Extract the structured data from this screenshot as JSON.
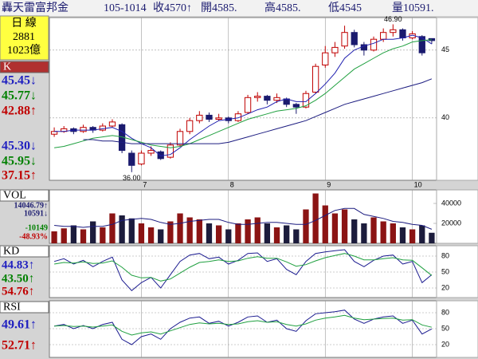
{
  "header": {
    "title": "轟天雷富邦金",
    "date": "105-1014",
    "close": "收4570↑",
    "open": "開4585.",
    "high": "高4585.",
    "low": "低4545",
    "volume": "量10591."
  },
  "sidebar": {
    "period": "日 線",
    "code": "2881",
    "cap": "1023億"
  },
  "chart_data": [
    {
      "type": "candlestick",
      "label": "K",
      "categories": [
        null,
        null,
        null,
        null,
        null,
        null,
        null,
        null,
        null,
        "7",
        null,
        null,
        null,
        null,
        null,
        null,
        null,
        null,
        "8",
        null,
        null,
        null,
        null,
        null,
        null,
        null,
        null,
        null,
        "9",
        null,
        null,
        null,
        null,
        null,
        null,
        null,
        null,
        "10",
        null,
        null
      ],
      "open": [
        38.8,
        39.0,
        39.2,
        39.0,
        39.3,
        39.1,
        39.4,
        39.5,
        37.4,
        36.6,
        37.4,
        37.5,
        37.1,
        38.0,
        39.0,
        39.8,
        40.2,
        39.9,
        40.0,
        39.8,
        40.4,
        41.5,
        41.6,
        41.3,
        41.4,
        41.0,
        40.8,
        41.9,
        43.9,
        44.8,
        45.3,
        46.3,
        45.4,
        45.0,
        45.8,
        46.3,
        46.5,
        45.9,
        46.0,
        45.85
      ],
      "high": [
        39.3,
        39.4,
        39.3,
        39.5,
        39.4,
        39.6,
        39.9,
        39.6,
        37.6,
        37.6,
        37.9,
        37.6,
        38.2,
        39.2,
        40.0,
        40.5,
        40.4,
        40.3,
        40.1,
        40.5,
        41.7,
        41.9,
        41.7,
        41.8,
        41.5,
        41.1,
        42.0,
        44.0,
        45.3,
        45.6,
        46.8,
        46.5,
        45.6,
        46.0,
        46.6,
        46.9,
        46.6,
        46.4,
        46.1,
        45.85
      ],
      "low": [
        38.6,
        38.9,
        38.8,
        38.9,
        38.9,
        39.0,
        39.3,
        37.4,
        36.0,
        36.5,
        37.2,
        36.9,
        37.0,
        37.9,
        38.8,
        39.6,
        39.7,
        39.8,
        39.6,
        39.7,
        40.3,
        41.2,
        41.0,
        41.1,
        40.8,
        40.3,
        40.7,
        41.8,
        43.7,
        44.5,
        45.1,
        45.2,
        44.6,
        44.9,
        45.6,
        46.0,
        45.7,
        45.8,
        44.6,
        45.45
      ],
      "close": [
        39.0,
        39.2,
        39.0,
        39.3,
        39.1,
        39.4,
        39.7,
        37.6,
        36.5,
        37.4,
        37.6,
        37.0,
        38.0,
        39.0,
        39.8,
        40.2,
        39.9,
        40.0,
        39.8,
        40.3,
        41.5,
        41.6,
        41.3,
        41.5,
        41.0,
        40.8,
        41.8,
        43.8,
        44.8,
        45.2,
        46.3,
        45.4,
        45.0,
        45.8,
        46.3,
        46.5,
        45.9,
        46.2,
        44.8,
        45.7
      ],
      "up_color": "#c00000",
      "down_color": "#1a1a6e",
      "series": [
        {
          "color": "#2020b0",
          "values": [
            39.0,
            39.0,
            39.1,
            39.1,
            39.1,
            39.2,
            39.3,
            39.0,
            38.5,
            38.1,
            37.8,
            37.2,
            37.3,
            37.8,
            38.4,
            38.9,
            39.4,
            39.8,
            39.9,
            40.0,
            40.3,
            40.6,
            40.8,
            41.2,
            41.4,
            41.2,
            41.2,
            41.8,
            42.5,
            43.3,
            44.4,
            45.0,
            45.3,
            45.5,
            45.8,
            45.8,
            45.9,
            46.1,
            45.9,
            45.45
          ]
        },
        {
          "color": "#20a040",
          "values": [
            37.8,
            37.9,
            38.1,
            38.3,
            38.5,
            38.6,
            38.7,
            38.6,
            38.4,
            38.2,
            38.0,
            37.9,
            37.8,
            37.9,
            38.1,
            38.4,
            38.7,
            39.0,
            39.3,
            39.6,
            39.9,
            40.1,
            40.3,
            40.5,
            40.6,
            40.7,
            40.9,
            41.3,
            41.8,
            42.4,
            43.0,
            43.6,
            44.0,
            44.4,
            44.8,
            45.1,
            45.3,
            45.6,
            45.7,
            45.77
          ]
        },
        {
          "color": "#1c1c80",
          "values": [
            null,
            null,
            null,
            38.4,
            38.4,
            38.3,
            38.3,
            38.2,
            38.1,
            38.1,
            38.1,
            38.1,
            38.1,
            38.1,
            38.1,
            38.1,
            38.1,
            38.1,
            38.2,
            38.4,
            38.6,
            38.8,
            39.0,
            39.2,
            39.4,
            39.6,
            39.8,
            40.1,
            40.4,
            40.7,
            41.0,
            41.2,
            41.4,
            41.6,
            41.8,
            42.0,
            42.2,
            42.4,
            42.6,
            42.88
          ]
        }
      ],
      "annotations": [
        {
          "value": 36.0,
          "label": "36.00"
        },
        {
          "value": 46.9,
          "label": "46.90"
        }
      ],
      "readouts": [
        {
          "text": "45.45↓",
          "color": "#2020c0"
        },
        {
          "text": "45.77↓",
          "color": "#008000"
        },
        {
          "text": "42.88↑",
          "color": "#c00000"
        },
        {
          "text": "45.30↓",
          "color": "#2020c0"
        },
        {
          "text": "45.95↓",
          "color": "#008000"
        },
        {
          "text": "37.15↑",
          "color": "#c00000"
        }
      ],
      "ylim": [
        35.4,
        47.4
      ],
      "yticks": [
        40,
        45
      ],
      "grid": true
    },
    {
      "type": "bar",
      "label": "VOL",
      "values": [
        12000,
        15000,
        18000,
        14000,
        22000,
        16000,
        30000,
        28000,
        25000,
        20000,
        16000,
        14000,
        22000,
        30000,
        26000,
        24000,
        20000,
        18000,
        14000,
        20000,
        24000,
        26000,
        20000,
        16000,
        18000,
        14000,
        34000,
        50000,
        38000,
        30000,
        34000,
        24000,
        20000,
        26000,
        22000,
        20000,
        16000,
        14000,
        18000,
        10591
      ],
      "up_color": "#8b1414",
      "down_color": "#1c1c3c",
      "series": [
        {
          "color": "#1c1c80",
          "values": [
            18000,
            17000,
            17000,
            16000,
            17000,
            17000,
            19000,
            23000,
            24000,
            25000,
            24000,
            21000,
            19000,
            20000,
            22000,
            23000,
            24000,
            24000,
            21000,
            19000,
            19000,
            20000,
            21000,
            21000,
            20000,
            19000,
            19000,
            23000,
            28000,
            33000,
            35000,
            35000,
            29000,
            27000,
            25000,
            22000,
            21000,
            19000,
            18000,
            14047
          ]
        }
      ],
      "readouts": [
        {
          "text": "14046.79↑",
          "color": "#1c1c70"
        },
        {
          "text": "10591↓",
          "color": "#1c1c70"
        },
        {
          "text": "-10149",
          "color": "#008000"
        },
        {
          "text": "-48.93%",
          "color": "#c00000"
        }
      ],
      "ylim": [
        0,
        53600
      ],
      "yticks": [
        20000,
        40000
      ],
      "grid": false
    },
    {
      "type": "line",
      "label": "KD",
      "series": [
        {
          "color": "#1c1c90",
          "values": [
            70,
            75,
            65,
            72,
            60,
            70,
            78,
            35,
            15,
            30,
            40,
            20,
            45,
            70,
            82,
            85,
            75,
            78,
            65,
            72,
            85,
            86,
            70,
            75,
            55,
            45,
            70,
            85,
            88,
            90,
            92,
            70,
            60,
            72,
            80,
            82,
            65,
            70,
            30,
            44.83
          ]
        },
        {
          "color": "#20a040",
          "values": [
            65,
            68,
            67,
            69,
            66,
            67,
            71,
            59,
            44,
            39,
            40,
            33,
            37,
            48,
            59,
            68,
            70,
            73,
            70,
            71,
            76,
            79,
            76,
            76,
            69,
            61,
            64,
            71,
            77,
            81,
            85,
            80,
            73,
            73,
            75,
            77,
            73,
            72,
            58,
            43.5
          ]
        }
      ],
      "readouts": [
        {
          "text": "44.83↑",
          "color": "#2020c0"
        },
        {
          "text": "43.50↑",
          "color": "#008000"
        },
        {
          "text": "54.76↑",
          "color": "#c00000"
        }
      ],
      "ylim": [
        2,
        99.5
      ],
      "yticks": [
        20,
        50,
        80
      ],
      "grid": true
    },
    {
      "type": "line",
      "label": "RSI",
      "series": [
        {
          "color": "#1c1c90",
          "values": [
            55,
            58,
            50,
            56,
            50,
            58,
            62,
            30,
            20,
            35,
            40,
            30,
            50,
            62,
            70,
            72,
            60,
            64,
            55,
            62,
            72,
            74,
            62,
            66,
            50,
            45,
            65,
            78,
            80,
            82,
            85,
            68,
            60,
            68,
            72,
            74,
            60,
            66,
            40,
            49.61
          ]
        },
        {
          "color": "#20a040",
          "values": [
            55,
            56,
            54,
            55,
            53,
            55,
            57,
            45,
            38,
            42,
            44,
            40,
            46,
            52,
            58,
            61,
            59,
            60,
            58,
            59,
            63,
            65,
            62,
            63,
            58,
            55,
            59,
            66,
            70,
            72,
            75,
            70,
            67,
            68,
            69,
            70,
            66,
            67,
            57,
            52.71
          ]
        }
      ],
      "readouts": [
        {
          "text": "49.61↑",
          "color": "#2020c0"
        },
        {
          "text": "52.71↑",
          "color": "#c00000"
        }
      ],
      "ylim": [
        -4,
        102.5
      ],
      "yticks": [
        20,
        50,
        80
      ],
      "grid": true
    }
  ]
}
